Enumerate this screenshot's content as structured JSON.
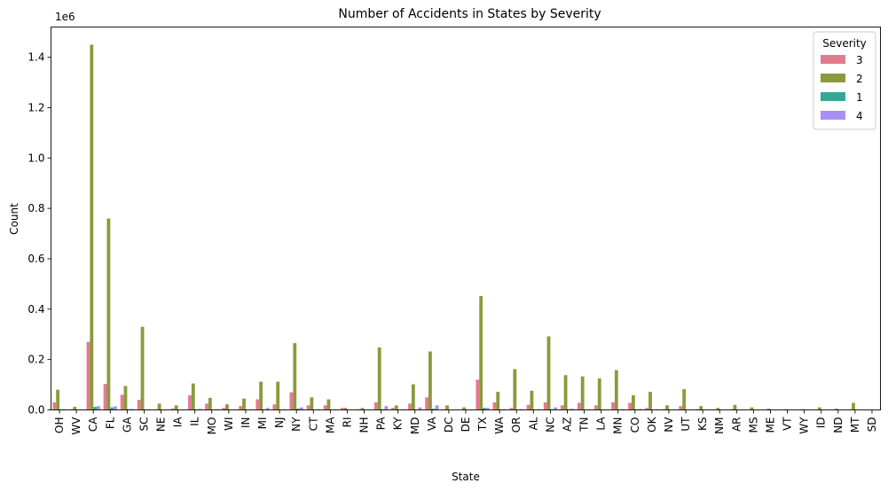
{
  "chart_data": {
    "type": "bar",
    "title": "Number of Accidents in States by Severity",
    "xlabel": "State",
    "ylabel": "Count",
    "y_offset_text": "1e6",
    "ylim": [
      0,
      1.52
    ],
    "yticks": [
      "0.0",
      "0.2",
      "0.4",
      "0.6",
      "0.8",
      "1.0",
      "1.2",
      "1.4"
    ],
    "y_unit_scale": 1000000,
    "legend": {
      "title": "Severity",
      "placement": "top-right"
    },
    "categories": [
      "OH",
      "WV",
      "CA",
      "FL",
      "GA",
      "SC",
      "NE",
      "IA",
      "IL",
      "MO",
      "WI",
      "IN",
      "MI",
      "NJ",
      "NY",
      "CT",
      "MA",
      "RI",
      "NH",
      "PA",
      "KY",
      "MD",
      "VA",
      "DC",
      "DE",
      "TX",
      "WA",
      "OR",
      "AL",
      "NC",
      "AZ",
      "TN",
      "LA",
      "MN",
      "CO",
      "OK",
      "NV",
      "UT",
      "KS",
      "NM",
      "AR",
      "MS",
      "ME",
      "VT",
      "WY",
      "ID",
      "ND",
      "MT",
      "SD"
    ],
    "series": [
      {
        "name": "3",
        "color": "#e37b8e",
        "values": [
          30000,
          3000,
          270000,
          103000,
          60000,
          40000,
          2000,
          6000,
          58000,
          25000,
          8000,
          15000,
          42000,
          22000,
          70000,
          18000,
          18000,
          8000,
          3000,
          30000,
          8000,
          25000,
          50000,
          3000,
          2000,
          120000,
          30000,
          8000,
          20000,
          30000,
          18000,
          28000,
          18000,
          30000,
          28000,
          8000,
          3000,
          15000,
          3000,
          2000,
          3000,
          2000,
          1000,
          1000,
          1000,
          2000,
          1000,
          2000,
          1000
        ]
      },
      {
        "name": "2",
        "color": "#8b9a3c",
        "values": [
          80000,
          12000,
          1450000,
          760000,
          95000,
          330000,
          25000,
          18000,
          105000,
          48000,
          22000,
          45000,
          112000,
          112000,
          265000,
          50000,
          42000,
          8000,
          8000,
          248000,
          18000,
          102000,
          232000,
          18000,
          10000,
          452000,
          72000,
          162000,
          76000,
          292000,
          138000,
          133000,
          125000,
          158000,
          58000,
          72000,
          18000,
          82000,
          15000,
          8000,
          20000,
          10000,
          5000,
          3000,
          3000,
          10000,
          5000,
          28000,
          1000
        ]
      },
      {
        "name": "1",
        "color": "#3aa596",
        "values": [
          2000,
          500,
          12000,
          10000,
          3000,
          2000,
          500,
          500,
          2000,
          1000,
          500,
          1000,
          2000,
          1000,
          5000,
          1000,
          1000,
          500,
          500,
          3000,
          500,
          2000,
          5000,
          500,
          500,
          8000,
          2000,
          1000,
          1000,
          3000,
          3000,
          1000,
          1000,
          2000,
          2000,
          1000,
          500,
          1000,
          500,
          500,
          500,
          500,
          500,
          500,
          500,
          500,
          500,
          500,
          500
        ]
      },
      {
        "name": "4",
        "color": "#a98ff3",
        "values": [
          3000,
          1000,
          15000,
          14000,
          4000,
          3000,
          1000,
          1000,
          4000,
          3000,
          1000,
          2000,
          8000,
          3000,
          10000,
          3000,
          3000,
          1000,
          1000,
          15000,
          3000,
          10000,
          18000,
          1000,
          500,
          8000,
          3000,
          3000,
          3000,
          10000,
          5000,
          3000,
          2000,
          3000,
          4000,
          3000,
          1000,
          2000,
          1000,
          500,
          1000,
          1000,
          500,
          500,
          500,
          500,
          500,
          1000,
          500
        ]
      }
    ]
  }
}
